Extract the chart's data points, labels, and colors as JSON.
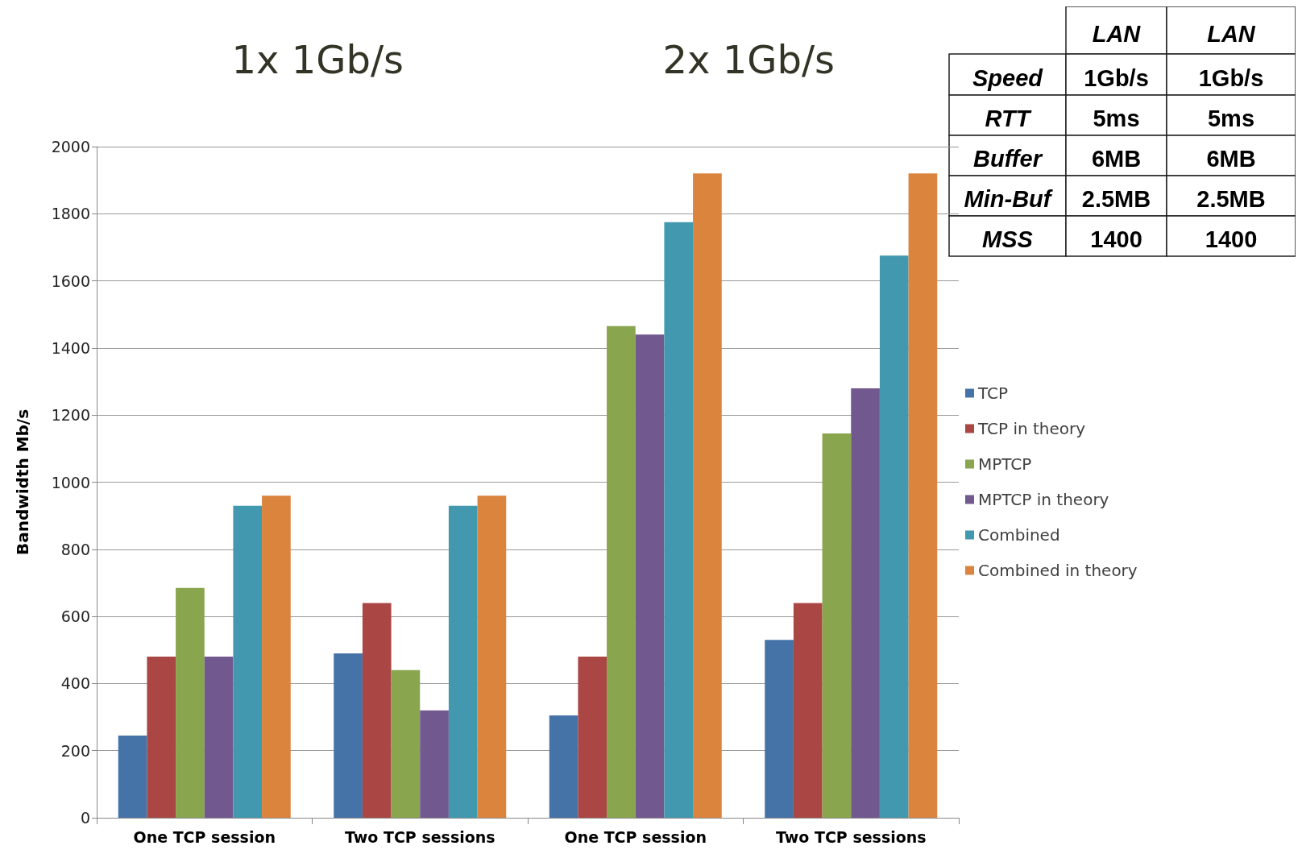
{
  "chart_data": {
    "type": "bar",
    "ylabel": "Bandwidth Mb/s",
    "categories": [
      "One TCP session",
      "Two TCP sessions",
      "One TCP session",
      "Two TCP sessions"
    ],
    "series": [
      {
        "name": "TCP",
        "color": "#4572a7",
        "values": [
          245,
          490,
          305,
          530
        ]
      },
      {
        "name": "TCP in theory",
        "color": "#aa4643",
        "values": [
          480,
          640,
          480,
          640
        ]
      },
      {
        "name": "MPTCP",
        "color": "#89a54e",
        "values": [
          685,
          440,
          1465,
          1145
        ]
      },
      {
        "name": "MPTCP in theory",
        "color": "#71588f",
        "values": [
          480,
          320,
          1440,
          1280
        ]
      },
      {
        "name": "Combined",
        "color": "#4198af",
        "values": [
          930,
          930,
          1775,
          1675
        ]
      },
      {
        "name": "Combined in theory",
        "color": "#db843d",
        "values": [
          960,
          960,
          1920,
          1920
        ]
      }
    ],
    "ylim": [
      0,
      2000
    ],
    "yticks": [
      0,
      200,
      400,
      600,
      800,
      1000,
      1200,
      1400,
      1600,
      1800,
      2000
    ],
    "grid": "y",
    "legend": "right",
    "annotations": [
      "1x 1Gb/s",
      "2x 1Gb/s",
      "LAN",
      "LAN",
      "Speed",
      "1Gb/s",
      "1Gb/s",
      "RTT",
      "5ms",
      "5ms",
      "Buffer",
      "6MB",
      "6MB",
      "Min-Buf",
      "2.5MB",
      "2.5MB",
      "MSS",
      "1400",
      "1400"
    ]
  }
}
